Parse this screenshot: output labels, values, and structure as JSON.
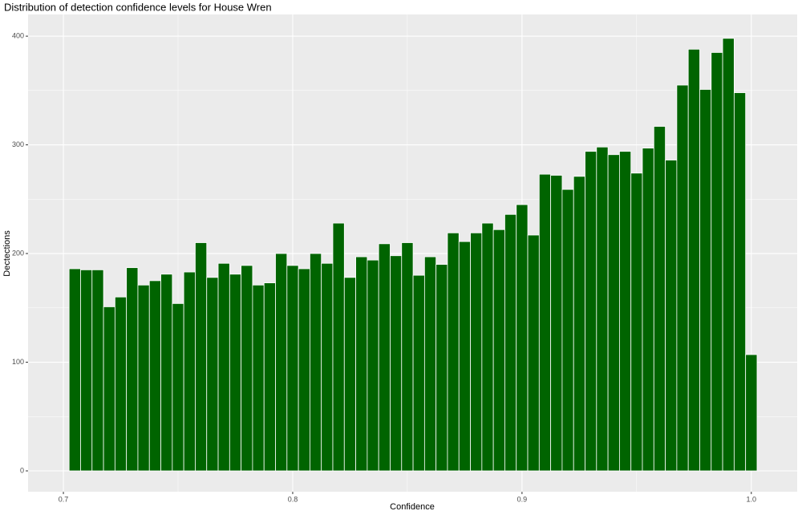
{
  "chart_data": {
    "type": "histogram",
    "title": "Distribution of detection confidence levels for House Wren",
    "x_label": "Confidence",
    "y_label": "Dectections",
    "color": "#006400",
    "edge_color": "#ffffff",
    "bins": [
      0.7025,
      0.7075,
      0.7125,
      0.7175,
      0.7225,
      0.7275,
      0.7325,
      0.7375,
      0.7425,
      0.7475,
      0.7525,
      0.7575,
      0.7625,
      0.7675,
      0.7725,
      0.7775,
      0.7825,
      0.7875,
      0.7925,
      0.7975,
      0.8025,
      0.8075,
      0.8125,
      0.8175,
      0.8225,
      0.8275,
      0.8325,
      0.8375,
      0.8425,
      0.8475,
      0.8525,
      0.8575,
      0.8625,
      0.8675,
      0.8725,
      0.8775,
      0.8825,
      0.8875,
      0.8925,
      0.8975,
      0.9025,
      0.9075,
      0.9125,
      0.9175,
      0.9225,
      0.9275,
      0.9325,
      0.9375,
      0.9425,
      0.9475,
      0.9525,
      0.9575,
      0.9625,
      0.9675,
      0.9725,
      0.9775,
      0.9825,
      0.9875,
      0.9925,
      0.9975,
      1.0025
    ],
    "values": [
      186,
      185,
      185,
      151,
      160,
      187,
      171,
      175,
      181,
      154,
      183,
      210,
      178,
      191,
      181,
      189,
      171,
      173,
      200,
      189,
      186,
      200,
      191,
      228,
      178,
      197,
      194,
      209,
      198,
      210,
      180,
      197,
      190,
      219,
      211,
      219,
      228,
      222,
      236,
      245,
      217,
      273,
      272,
      259,
      271,
      294,
      298,
      291,
      294,
      274,
      297,
      317,
      286,
      355,
      388,
      351,
      385,
      398,
      348,
      107
    ],
    "xlim": [
      0.6846,
      1.02
    ],
    "ylim": [
      -19.2,
      420
    ],
    "xticks": [
      0.7,
      0.8,
      0.9,
      {
        "value": 1,
        "label": "1.0"
      }
    ],
    "yticks": [
      0,
      100,
      200,
      300,
      400
    ],
    "grid": true
  }
}
